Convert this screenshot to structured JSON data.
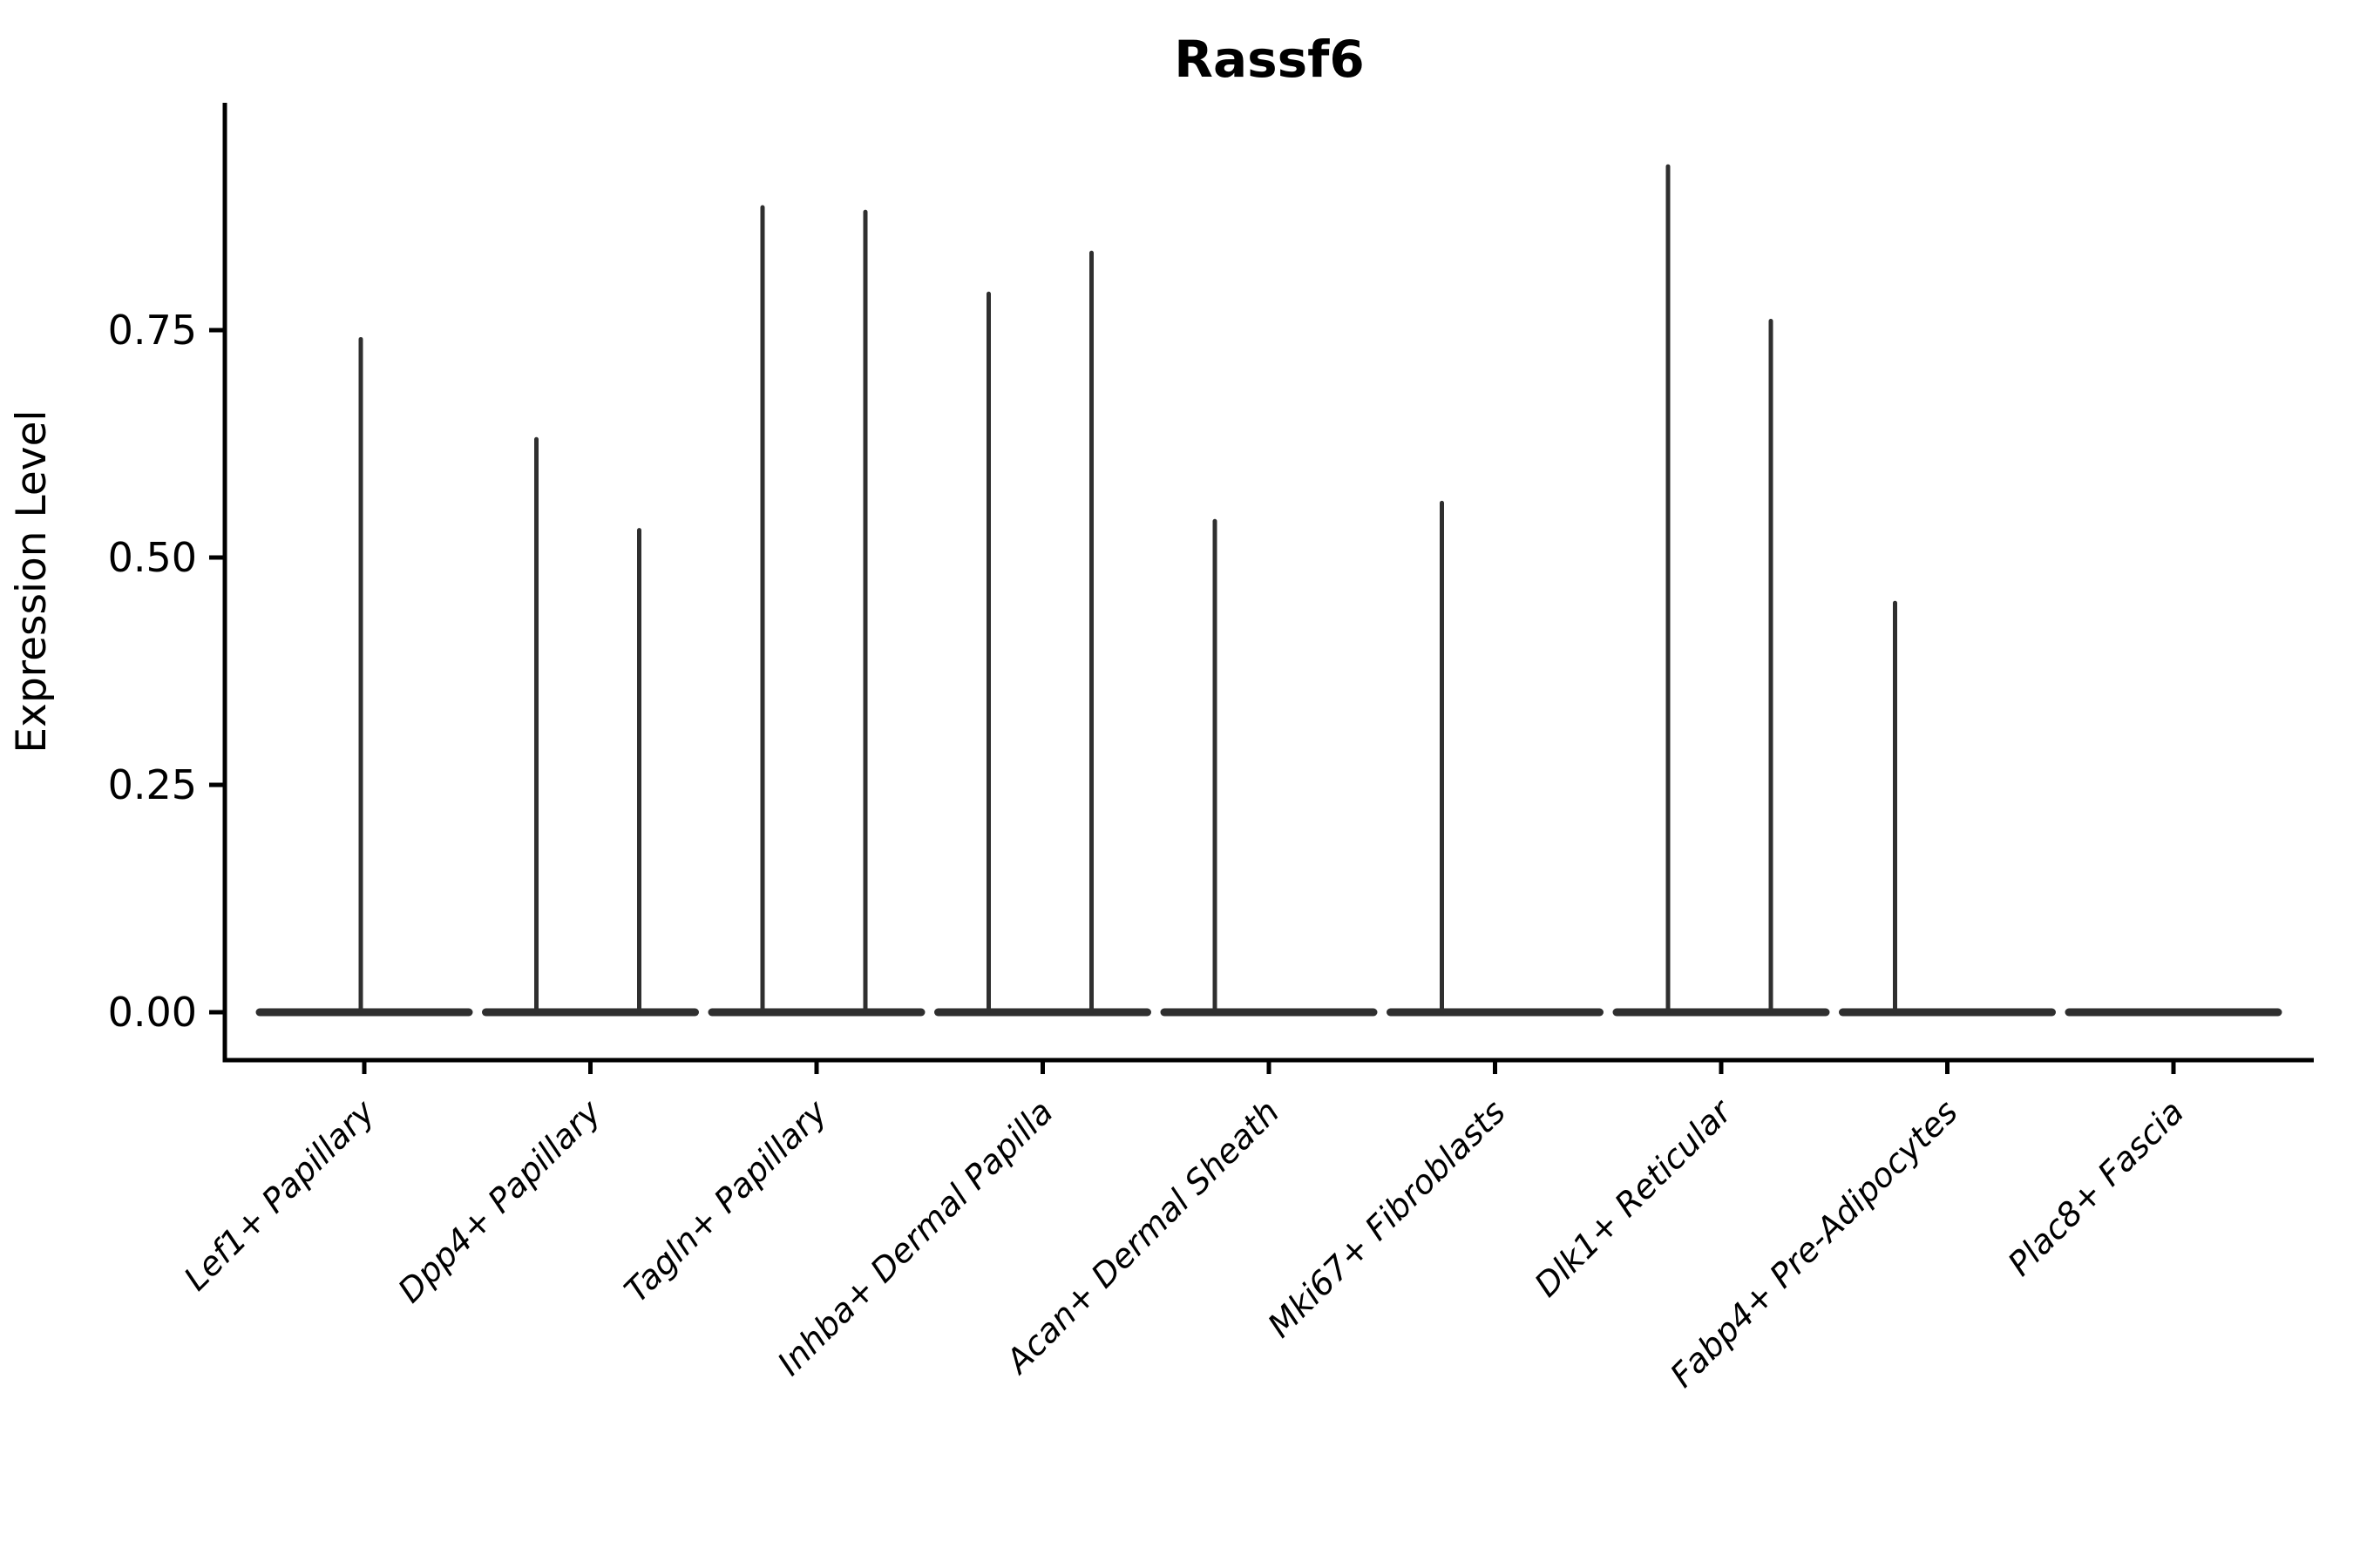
{
  "chart_data": {
    "type": "violin",
    "title": "Rassf6",
    "xlabel": "",
    "ylabel": "Expression Level",
    "ylim": [
      0,
      1.0
    ],
    "grid": false,
    "legend": "none",
    "xtick_rotation": 45,
    "ytick_values": [
      0.0,
      0.25,
      0.5,
      0.75
    ],
    "ytick_labels": [
      "0.00",
      "0.25",
      "0.50",
      "0.75"
    ],
    "categories": [
      "Lef1+ Papillary",
      "Dpp4+ Papillary",
      "Tagln+ Papillary",
      "Inhba+ Dermal Papilla",
      "Acan+ Dermal Sheath",
      "Mki67+ Fibroblasts",
      "Dlk1+ Reticular",
      "Fabp4+ Pre-Adipocytes",
      "Plac8+ Fascia"
    ],
    "violins": [
      {
        "category": "Lef1+ Papillary",
        "baseline_value": 0,
        "spikes": [
          {
            "pos": "center",
            "dx": -4,
            "max": 0.74
          }
        ]
      },
      {
        "category": "Dpp4+ Papillary",
        "baseline_value": 0,
        "spikes": [
          {
            "pos": "left",
            "dx": -62,
            "max": 0.63
          },
          {
            "pos": "right",
            "dx": 56,
            "max": 0.53
          }
        ]
      },
      {
        "category": "Tagln+ Papillary",
        "baseline_value": 0,
        "spikes": [
          {
            "pos": "left",
            "dx": -62,
            "max": 0.885
          },
          {
            "pos": "right",
            "dx": 56,
            "max": 0.88
          }
        ]
      },
      {
        "category": "Inhba+ Dermal Papilla",
        "baseline_value": 0,
        "spikes": [
          {
            "pos": "left",
            "dx": -62,
            "max": 0.79
          },
          {
            "pos": "right",
            "dx": 56,
            "max": 0.835
          }
        ]
      },
      {
        "category": "Acan+ Dermal Sheath",
        "baseline_value": 0,
        "spikes": [
          {
            "pos": "left",
            "dx": -62,
            "max": 0.54
          }
        ]
      },
      {
        "category": "Mki67+ Fibroblasts",
        "baseline_value": 0,
        "spikes": [
          {
            "pos": "left",
            "dx": -61,
            "max": 0.56
          }
        ]
      },
      {
        "category": "Dlk1+ Reticular",
        "baseline_value": 0,
        "spikes": [
          {
            "pos": "left",
            "dx": -61,
            "max": 0.93
          },
          {
            "pos": "right",
            "dx": 57,
            "max": 0.76
          }
        ]
      },
      {
        "category": "Fabp4+ Pre-Adipocytes",
        "baseline_value": 0,
        "spikes": [
          {
            "pos": "left",
            "dx": -60,
            "max": 0.45
          }
        ]
      },
      {
        "category": "Plac8+ Fascia",
        "baseline_value": 0,
        "spikes": []
      }
    ],
    "colors": {
      "violin": "#2f2f2f",
      "axis": "#000000",
      "text": "#000000",
      "background": "#ffffff"
    }
  }
}
